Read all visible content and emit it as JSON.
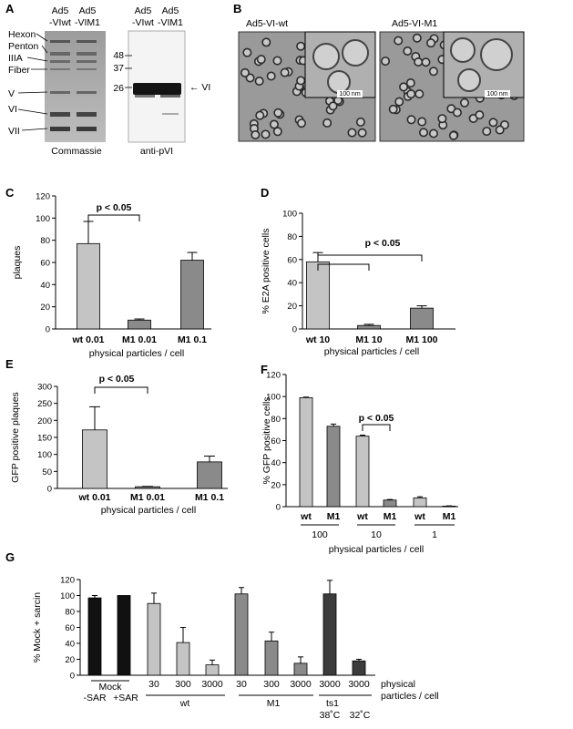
{
  "panelA": {
    "letter": "A",
    "gel": {
      "lane_headers": [
        [
          "Ad5",
          "-VIwt"
        ],
        [
          "Ad5",
          "-VIM1"
        ]
      ],
      "bands": [
        "Hexon",
        "Penton",
        "IIIA",
        "Fiber",
        "V",
        "VI",
        "VII"
      ],
      "caption": "Commassie"
    },
    "blot": {
      "lane_headers": [
        [
          "Ad5",
          "-VIwt"
        ],
        [
          "Ad5",
          "-VIM1"
        ]
      ],
      "markers": [
        "48",
        "37",
        "26"
      ],
      "arrow_label": "← VI",
      "caption": "anti-pVI"
    }
  },
  "panelB": {
    "letter": "B",
    "images": [
      {
        "label": "Ad5-VI-wt",
        "scale": "100 nm"
      },
      {
        "label": "Ad5-VI-M1",
        "scale": "100 nm"
      }
    ]
  },
  "colors": {
    "light": "#c4c4c4",
    "medium": "#8a8a8a",
    "dark": "#3c3c3c",
    "black": "#111111",
    "em_bg": "#9a9a9a"
  },
  "chart_data": [
    {
      "panel": "C",
      "type": "bar",
      "ylabel": "plaques",
      "xlabel": "physical particles / cell",
      "ylim": [
        0,
        120
      ],
      "yticks": [
        0,
        20,
        40,
        60,
        80,
        100,
        120
      ],
      "categories": [
        "wt 0.01",
        "M1 0.01",
        "M1 0.1"
      ],
      "values": [
        77,
        8,
        62
      ],
      "errors": [
        20,
        1,
        7
      ],
      "annotation": "p < 0.05"
    },
    {
      "panel": "D",
      "type": "bar",
      "ylabel": "% E2A positive cells",
      "xlabel": "physical particles / cell",
      "ylim": [
        0,
        100
      ],
      "yticks": [
        0,
        20,
        40,
        60,
        80,
        100
      ],
      "categories": [
        "wt 10",
        "M1 10",
        "M1 100"
      ],
      "values": [
        58,
        3,
        18
      ],
      "errors": [
        8,
        1,
        2
      ],
      "annotation": "p < 0.05"
    },
    {
      "panel": "E",
      "type": "bar",
      "ylabel": "GFP positive plaques",
      "xlabel": "physical particles / cell",
      "ylim": [
        0,
        300
      ],
      "yticks": [
        0,
        50,
        100,
        150,
        200,
        250,
        300
      ],
      "categories": [
        "wt 0.01",
        "M1 0.01",
        "M1 0.1"
      ],
      "values": [
        172,
        5,
        78
      ],
      "errors": [
        68,
        1,
        17
      ],
      "annotation": "p < 0.05"
    },
    {
      "panel": "F",
      "type": "bar",
      "ylabel": "% GFP positive cells",
      "xlabel": "physical particles / cell",
      "ylim": [
        0,
        120
      ],
      "yticks": [
        0,
        20,
        40,
        60,
        80,
        100,
        120
      ],
      "categories": [
        "wt",
        "M1",
        "wt",
        "M1",
        "wt",
        "M1"
      ],
      "groups": [
        "100",
        "10",
        "1"
      ],
      "values": [
        99,
        73,
        64,
        6,
        8,
        0.5
      ],
      "errors": [
        0.5,
        2,
        1,
        0.5,
        1,
        0.2
      ],
      "annotation": "p < 0.05"
    },
    {
      "panel": "G",
      "type": "bar",
      "ylabel": "% Mock + sarcin",
      "xlabel": "physical particles / cell",
      "xlabel_lines": [
        "physical",
        "particles / cell"
      ],
      "ylim": [
        0,
        120
      ],
      "yticks": [
        0,
        20,
        40,
        60,
        80,
        100,
        120
      ],
      "categories": [
        "-SAR",
        "+SAR",
        "30",
        "300",
        "3000",
        "30",
        "300",
        "3000",
        "3000",
        "3000"
      ],
      "groups": [
        {
          "label": "Mock",
          "sub": [
            "-SAR",
            "+SAR"
          ]
        },
        {
          "label": "wt"
        },
        {
          "label": "M1"
        },
        {
          "label": "ts1",
          "sub": [
            "38˚C",
            "32˚C"
          ]
        }
      ],
      "values": [
        97,
        100,
        90,
        41,
        13,
        102,
        43,
        15,
        102,
        18
      ],
      "errors": [
        3,
        0,
        13,
        19,
        6,
        8,
        11,
        8,
        17,
        2
      ]
    }
  ]
}
